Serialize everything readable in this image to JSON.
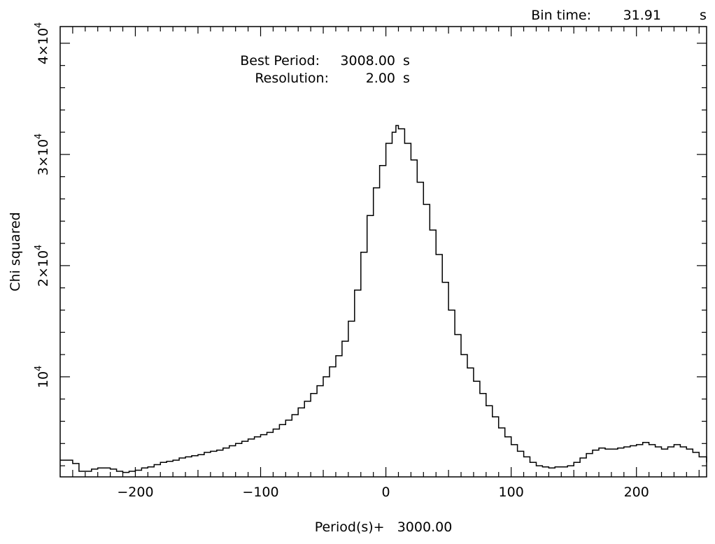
{
  "chart_data": {
    "type": "line",
    "step": true,
    "xlabel": "Period(s)+   3000.00",
    "ylabel": "Chi squared",
    "xlim": [
      -260,
      256
    ],
    "ylim": [
      1000,
      41500
    ],
    "x_ticks": [
      -200,
      -100,
      0,
      100,
      200
    ],
    "x_tick_labels": [
      "−200",
      "−100",
      "0",
      "100",
      "200"
    ],
    "y_ticks": [
      10000,
      20000,
      30000,
      40000
    ],
    "y_tick_labels": [
      {
        "mantissa": "",
        "base": "10",
        "exp": "4"
      },
      {
        "mantissa": "2×",
        "base": "10",
        "exp": "4"
      },
      {
        "mantissa": "3×",
        "base": "10",
        "exp": "4"
      },
      {
        "mantissa": "4×",
        "base": "10",
        "exp": "4"
      }
    ],
    "grid": false,
    "annotations": {
      "bin_time_label": "Bin time:",
      "bin_time_value": "31.91",
      "bin_time_unit": "s",
      "best_period_label": "Best Period:",
      "best_period_value": "3008.00",
      "best_period_unit": "s",
      "resolution_label": "Resolution:",
      "resolution_value": "2.00",
      "resolution_unit": "s"
    },
    "series": [
      {
        "points": [
          [
            -260,
            2500
          ],
          [
            -250,
            2200
          ],
          [
            -245,
            1500
          ],
          [
            -240,
            1500
          ],
          [
            -235,
            1700
          ],
          [
            -230,
            1800
          ],
          [
            -225,
            1800
          ],
          [
            -220,
            1700
          ],
          [
            -215,
            1500
          ],
          [
            -210,
            1400
          ],
          [
            -205,
            1500
          ],
          [
            -200,
            1600
          ],
          [
            -195,
            1800
          ],
          [
            -190,
            1900
          ],
          [
            -185,
            2100
          ],
          [
            -180,
            2300
          ],
          [
            -175,
            2400
          ],
          [
            -170,
            2500
          ],
          [
            -165,
            2700
          ],
          [
            -160,
            2800
          ],
          [
            -155,
            2900
          ],
          [
            -150,
            3000
          ],
          [
            -145,
            3200
          ],
          [
            -140,
            3300
          ],
          [
            -135,
            3400
          ],
          [
            -130,
            3600
          ],
          [
            -125,
            3800
          ],
          [
            -120,
            4000
          ],
          [
            -115,
            4200
          ],
          [
            -110,
            4400
          ],
          [
            -105,
            4600
          ],
          [
            -100,
            4800
          ],
          [
            -95,
            5000
          ],
          [
            -90,
            5300
          ],
          [
            -85,
            5700
          ],
          [
            -80,
            6100
          ],
          [
            -75,
            6600
          ],
          [
            -70,
            7200
          ],
          [
            -65,
            7800
          ],
          [
            -60,
            8500
          ],
          [
            -55,
            9200
          ],
          [
            -50,
            10000
          ],
          [
            -45,
            10900
          ],
          [
            -40,
            11900
          ],
          [
            -35,
            13200
          ],
          [
            -30,
            15000
          ],
          [
            -25,
            17800
          ],
          [
            -20,
            21200
          ],
          [
            -15,
            24500
          ],
          [
            -10,
            27000
          ],
          [
            -5,
            29000
          ],
          [
            0,
            31000
          ],
          [
            5,
            32000
          ],
          [
            8,
            32600
          ],
          [
            10,
            32300
          ],
          [
            15,
            31000
          ],
          [
            20,
            29500
          ],
          [
            25,
            27500
          ],
          [
            30,
            25500
          ],
          [
            35,
            23200
          ],
          [
            40,
            21000
          ],
          [
            45,
            18500
          ],
          [
            50,
            16000
          ],
          [
            55,
            13800
          ],
          [
            60,
            12000
          ],
          [
            65,
            10800
          ],
          [
            70,
            9600
          ],
          [
            75,
            8500
          ],
          [
            80,
            7400
          ],
          [
            85,
            6400
          ],
          [
            90,
            5400
          ],
          [
            95,
            4600
          ],
          [
            100,
            3900
          ],
          [
            105,
            3300
          ],
          [
            110,
            2800
          ],
          [
            115,
            2300
          ],
          [
            120,
            2000
          ],
          [
            125,
            1900
          ],
          [
            130,
            1800
          ],
          [
            135,
            1900
          ],
          [
            140,
            1900
          ],
          [
            145,
            2000
          ],
          [
            150,
            2300
          ],
          [
            155,
            2700
          ],
          [
            160,
            3100
          ],
          [
            165,
            3400
          ],
          [
            170,
            3600
          ],
          [
            175,
            3500
          ],
          [
            180,
            3500
          ],
          [
            185,
            3600
          ],
          [
            190,
            3700
          ],
          [
            195,
            3800
          ],
          [
            200,
            3900
          ],
          [
            205,
            4100
          ],
          [
            210,
            3900
          ],
          [
            215,
            3700
          ],
          [
            220,
            3500
          ],
          [
            225,
            3700
          ],
          [
            230,
            3900
          ],
          [
            235,
            3700
          ],
          [
            240,
            3500
          ],
          [
            245,
            3200
          ],
          [
            250,
            2800
          ],
          [
            256,
            2300
          ]
        ]
      }
    ]
  }
}
